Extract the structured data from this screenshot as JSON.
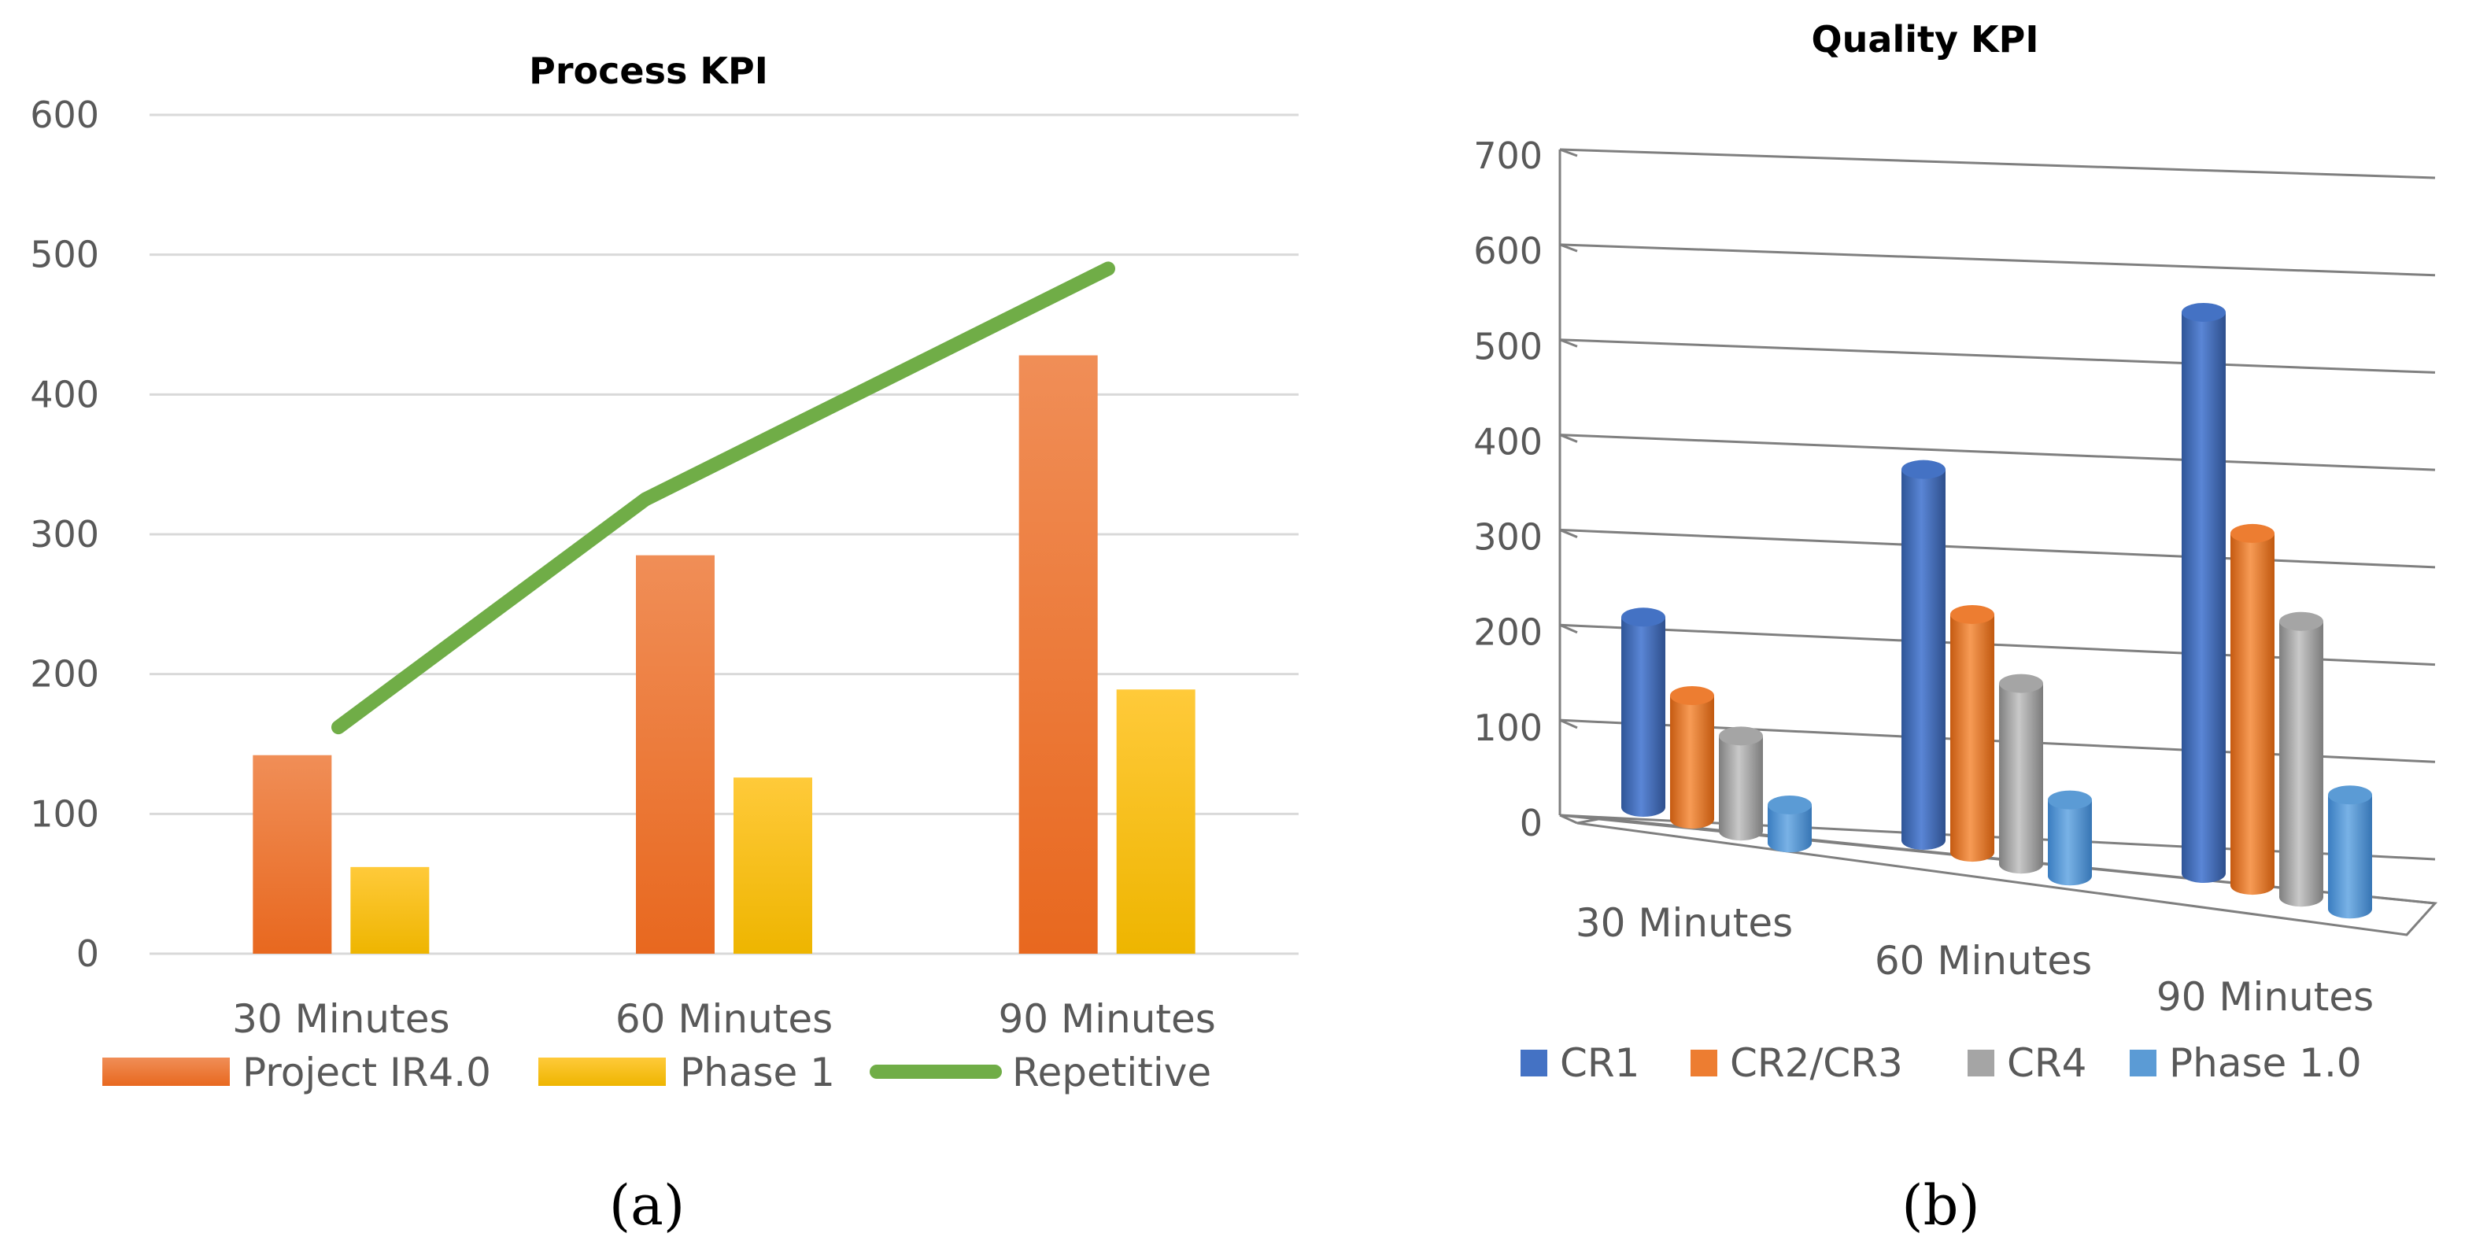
{
  "chart_data": [
    {
      "type": "bar",
      "title": "Process KPI",
      "panel_label": "(a)",
      "categories": [
        "30 Minutes",
        "60 Minutes",
        "90 Minutes"
      ],
      "ylim": [
        0,
        600
      ],
      "yticks": [
        "0",
        "100",
        "200",
        "300",
        "400",
        "500",
        "600"
      ],
      "grid": true,
      "legend_position": "bottom",
      "series": [
        {
          "name": "Project IR4.0",
          "kind": "bar",
          "color": "#ED7D31",
          "values": [
            142,
            285,
            428
          ]
        },
        {
          "name": "Phase 1",
          "kind": "bar",
          "color": "#FFC000",
          "values": [
            62,
            126,
            189
          ]
        },
        {
          "name": "Repetitive",
          "kind": "line",
          "color": "#70AD47",
          "values": [
            162,
            325,
            490
          ]
        }
      ]
    },
    {
      "type": "bar",
      "subtype": "3d-cylinder",
      "title": "Quality KPI",
      "panel_label": "(b)",
      "categories": [
        "30 Minutes",
        "60 Minutes",
        "90 Minutes"
      ],
      "ylim": [
        0,
        700
      ],
      "yticks": [
        "0",
        "100",
        "200",
        "300",
        "400",
        "500",
        "600",
        "700"
      ],
      "grid": true,
      "legend_position": "bottom",
      "series": [
        {
          "name": "CR1",
          "color": "#4472C4",
          "values": [
            200,
            390,
            590
          ]
        },
        {
          "name": "CR2/CR3",
          "color": "#ED7D31",
          "values": [
            130,
            250,
            370
          ]
        },
        {
          "name": "CR4",
          "color": "#A5A5A5",
          "values": [
            100,
            190,
            290
          ]
        },
        {
          "name": "Phase 1.0",
          "color": "#5B9BD5",
          "values": [
            40,
            80,
            120
          ]
        }
      ]
    }
  ]
}
